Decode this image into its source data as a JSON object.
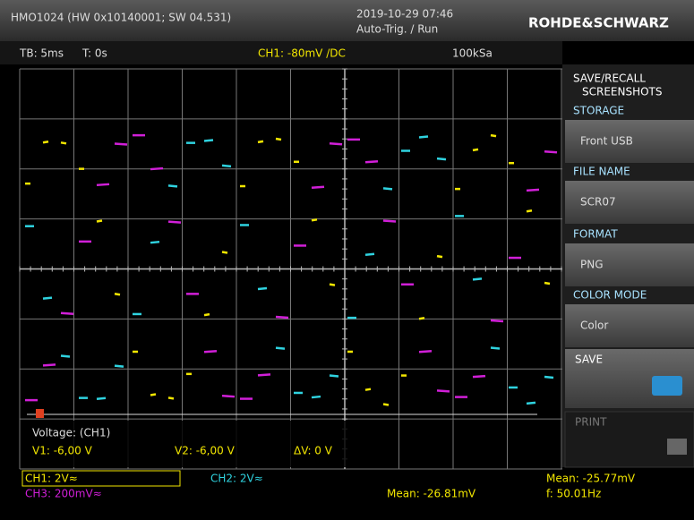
{
  "header": {
    "device": "HMO1024 (HW 0x10140001; SW 04.531)",
    "datetime": "2019-10-29 07:46",
    "status": "Auto-Trig. / Run",
    "brand": "ROHDE&SCHWARZ"
  },
  "status_bar": {
    "timebase": "TB: 5ms",
    "trigger_time": "T: 0s",
    "channel": "CH1: -80mV /DC",
    "sample_rate": "100kSa"
  },
  "cursor": {
    "title": "Voltage: (CH1)",
    "v1": "V1: -6,00 V",
    "v2": "V2: -6,00 V",
    "delta": "ΔV: 0 V"
  },
  "channels": {
    "ch1": "CH1: 2V≈",
    "ch2": "CH2: 2V≈",
    "ch3": "CH3: 200mV≈"
  },
  "measurements": {
    "mean_ch3": "Mean: -26.81mV",
    "mean_ch1": "Mean: -25.77mV",
    "frequency": "f: 50.01Hz"
  },
  "menu": {
    "title": [
      "SAVE/RECALL",
      "SCREENSHOTS"
    ],
    "items": [
      {
        "header": "STORAGE",
        "value": "Front USB"
      },
      {
        "header": "FILE NAME",
        "value": "SCR07"
      },
      {
        "header": "FORMAT",
        "value": "PNG"
      },
      {
        "header": "COLOR MODE",
        "value": "Color"
      }
    ],
    "save": "SAVE",
    "print": "PRINT"
  }
}
